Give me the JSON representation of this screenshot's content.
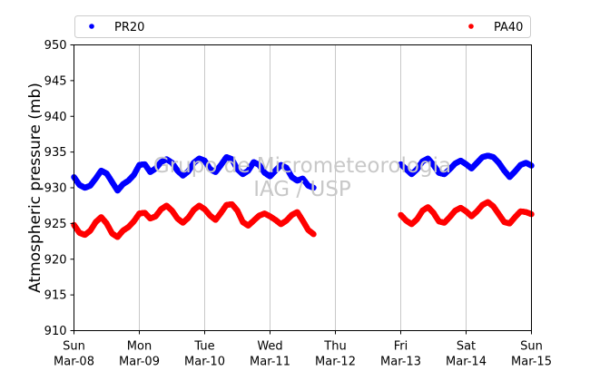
{
  "chart_data": {
    "type": "scatter",
    "ylabel": "Atmospheric pressure (mb)",
    "xlabel": "",
    "ylim": [
      910,
      950
    ],
    "yticks": [
      910,
      915,
      920,
      925,
      930,
      935,
      940,
      945,
      950
    ],
    "xlim": [
      "2015-03-08 00:00",
      "2015-03-15 00:00"
    ],
    "xtick_labels": [
      {
        "date": "2015-03-08",
        "day": "Sun",
        "label": "Mar-08"
      },
      {
        "date": "2015-03-09",
        "day": "Mon",
        "label": "Mar-09"
      },
      {
        "date": "2015-03-10",
        "day": "Tue",
        "label": "Mar-10"
      },
      {
        "date": "2015-03-11",
        "day": "Wed",
        "label": "Mar-11"
      },
      {
        "date": "2015-03-12",
        "day": "Thu",
        "label": "Mar-12"
      },
      {
        "date": "2015-03-13",
        "day": "Fri",
        "label": "Mar-13"
      },
      {
        "date": "2015-03-14",
        "day": "Sat",
        "label": "Mar-14"
      },
      {
        "date": "2015-03-15",
        "day": "Sun",
        "label": "Mar-15"
      }
    ],
    "grid": "vertical",
    "legend_placement": "top, above plot",
    "watermark": [
      "Grupo de Micrometeorologia",
      "IAG / USP"
    ],
    "series": [
      {
        "name": "PR20",
        "color": "#0000ff",
        "x": [
          "2015-03-08 00:00",
          "2015-03-08 02:00",
          "2015-03-08 04:00",
          "2015-03-08 06:00",
          "2015-03-08 08:00",
          "2015-03-08 10:00",
          "2015-03-08 12:00",
          "2015-03-08 14:00",
          "2015-03-08 16:00",
          "2015-03-08 18:00",
          "2015-03-08 20:00",
          "2015-03-08 22:00",
          "2015-03-09 00:00",
          "2015-03-09 02:00",
          "2015-03-09 04:00",
          "2015-03-09 06:00",
          "2015-03-09 08:00",
          "2015-03-09 10:00",
          "2015-03-09 12:00",
          "2015-03-09 14:00",
          "2015-03-09 16:00",
          "2015-03-09 18:00",
          "2015-03-09 20:00",
          "2015-03-09 22:00",
          "2015-03-10 00:00",
          "2015-03-10 02:00",
          "2015-03-10 04:00",
          "2015-03-10 06:00",
          "2015-03-10 08:00",
          "2015-03-10 10:00",
          "2015-03-10 12:00",
          "2015-03-10 14:00",
          "2015-03-10 16:00",
          "2015-03-10 18:00",
          "2015-03-10 20:00",
          "2015-03-10 22:00",
          "2015-03-11 00:00",
          "2015-03-11 02:00",
          "2015-03-11 04:00",
          "2015-03-11 06:00",
          "2015-03-11 08:00",
          "2015-03-11 10:00",
          "2015-03-11 12:00",
          "2015-03-11 14:00",
          "2015-03-11 16:00",
          "2015-03-13 00:00",
          "2015-03-13 02:00",
          "2015-03-13 04:00",
          "2015-03-13 06:00",
          "2015-03-13 08:00",
          "2015-03-13 10:00",
          "2015-03-13 12:00",
          "2015-03-13 14:00",
          "2015-03-13 16:00",
          "2015-03-13 18:00",
          "2015-03-13 20:00",
          "2015-03-13 22:00",
          "2015-03-14 00:00",
          "2015-03-14 02:00",
          "2015-03-14 04:00",
          "2015-03-14 06:00",
          "2015-03-14 08:00",
          "2015-03-14 10:00",
          "2015-03-14 12:00",
          "2015-03-14 14:00",
          "2015-03-14 16:00",
          "2015-03-14 18:00",
          "2015-03-14 20:00",
          "2015-03-14 22:00",
          "2015-03-15 00:00"
        ],
        "y": [
          931.5,
          930.4,
          930.0,
          930.3,
          931.3,
          932.4,
          932.0,
          930.8,
          929.6,
          930.5,
          931.0,
          931.8,
          933.2,
          933.3,
          932.2,
          932.7,
          933.6,
          934.0,
          933.5,
          932.4,
          931.7,
          932.3,
          933.5,
          934.1,
          933.8,
          932.6,
          932.2,
          933.2,
          934.3,
          934.0,
          932.6,
          931.9,
          932.4,
          933.6,
          933.2,
          932.1,
          931.6,
          932.4,
          933.2,
          932.8,
          931.5,
          931.0,
          931.3,
          930.3,
          930.0,
          933.3,
          932.6,
          931.9,
          932.6,
          933.7,
          934.1,
          933.2,
          932.1,
          931.9,
          932.6,
          933.4,
          933.8,
          933.3,
          932.7,
          933.5,
          934.3,
          934.5,
          934.3,
          933.5,
          932.4,
          931.5,
          932.3,
          933.2,
          933.5,
          933.1
        ]
      },
      {
        "name": "PA40",
        "color": "#ff0000",
        "x": [
          "2015-03-08 00:00",
          "2015-03-08 02:00",
          "2015-03-08 04:00",
          "2015-03-08 06:00",
          "2015-03-08 08:00",
          "2015-03-08 10:00",
          "2015-03-08 12:00",
          "2015-03-08 14:00",
          "2015-03-08 16:00",
          "2015-03-08 18:00",
          "2015-03-08 20:00",
          "2015-03-08 22:00",
          "2015-03-09 00:00",
          "2015-03-09 02:00",
          "2015-03-09 04:00",
          "2015-03-09 06:00",
          "2015-03-09 08:00",
          "2015-03-09 10:00",
          "2015-03-09 12:00",
          "2015-03-09 14:00",
          "2015-03-09 16:00",
          "2015-03-09 18:00",
          "2015-03-09 20:00",
          "2015-03-09 22:00",
          "2015-03-10 00:00",
          "2015-03-10 02:00",
          "2015-03-10 04:00",
          "2015-03-10 06:00",
          "2015-03-10 08:00",
          "2015-03-10 10:00",
          "2015-03-10 12:00",
          "2015-03-10 14:00",
          "2015-03-10 16:00",
          "2015-03-10 18:00",
          "2015-03-10 20:00",
          "2015-03-10 22:00",
          "2015-03-11 00:00",
          "2015-03-11 02:00",
          "2015-03-11 04:00",
          "2015-03-11 06:00",
          "2015-03-11 08:00",
          "2015-03-11 10:00",
          "2015-03-11 12:00",
          "2015-03-11 14:00",
          "2015-03-11 16:00",
          "2015-03-13 00:00",
          "2015-03-13 02:00",
          "2015-03-13 04:00",
          "2015-03-13 06:00",
          "2015-03-13 08:00",
          "2015-03-13 10:00",
          "2015-03-13 12:00",
          "2015-03-13 14:00",
          "2015-03-13 16:00",
          "2015-03-13 18:00",
          "2015-03-13 20:00",
          "2015-03-13 22:00",
          "2015-03-14 00:00",
          "2015-03-14 02:00",
          "2015-03-14 04:00",
          "2015-03-14 06:00",
          "2015-03-14 08:00",
          "2015-03-14 10:00",
          "2015-03-14 12:00",
          "2015-03-14 14:00",
          "2015-03-14 16:00",
          "2015-03-14 18:00",
          "2015-03-14 20:00",
          "2015-03-14 22:00",
          "2015-03-15 00:00"
        ],
        "y": [
          924.8,
          923.7,
          923.4,
          924.0,
          925.2,
          925.9,
          925.0,
          923.6,
          923.1,
          924.0,
          924.5,
          925.3,
          926.4,
          926.5,
          925.7,
          926.0,
          927.0,
          927.5,
          926.8,
          925.7,
          925.1,
          925.8,
          926.9,
          927.5,
          927.0,
          926.1,
          925.5,
          926.5,
          927.6,
          927.7,
          926.8,
          925.2,
          924.7,
          925.4,
          926.1,
          926.4,
          926.0,
          925.5,
          924.9,
          925.4,
          926.2,
          926.6,
          925.4,
          924.1,
          923.5,
          926.2,
          925.4,
          924.9,
          925.6,
          926.8,
          927.3,
          926.5,
          925.3,
          925.1,
          925.9,
          926.8,
          927.2,
          926.7,
          926.0,
          926.7,
          927.6,
          928.0,
          927.4,
          926.3,
          925.2,
          925.0,
          925.9,
          926.7,
          926.6,
          926.3
        ]
      }
    ]
  }
}
